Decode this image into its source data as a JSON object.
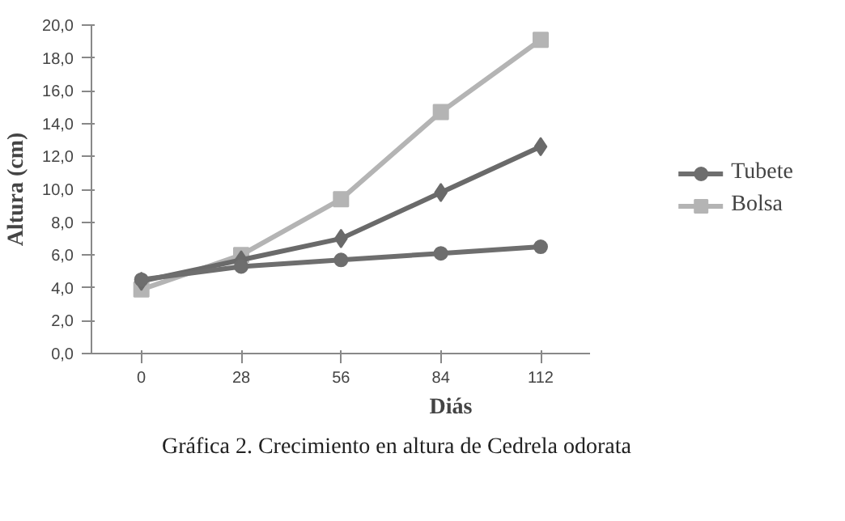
{
  "chart_data": {
    "type": "line",
    "xlabel": "Diás",
    "ylabel": "Altura (cm)",
    "annotations": [
      "Gráfica 2. Crecimiento en altura de Cedrela odorata"
    ],
    "categories": [
      "0",
      "28",
      "56",
      "84",
      "112"
    ],
    "ylim": [
      0,
      20
    ],
    "yticks": [
      {
        "value": 0,
        "label": "0,0"
      },
      {
        "value": 2,
        "label": "2,0"
      },
      {
        "value": 4,
        "label": "4,0"
      },
      {
        "value": 6,
        "label": "6,0"
      },
      {
        "value": 8,
        "label": "8,0"
      },
      {
        "value": 10,
        "label": "10,0"
      },
      {
        "value": 12,
        "label": "12,0"
      },
      {
        "value": 14,
        "label": "14,0"
      },
      {
        "value": 16,
        "label": "16,0"
      },
      {
        "value": 18,
        "label": "18,0"
      },
      {
        "value": 20,
        "label": "20,0"
      }
    ],
    "grid": false,
    "legend": "right",
    "line_style": "solid",
    "series": [
      {
        "name": "Tubete",
        "color": "#6e6e6e",
        "marker": "circle",
        "values": [
          4.5,
          5.3,
          5.7,
          6.1,
          6.5
        ]
      },
      {
        "color": "#6a6a6a",
        "marker": "diamond",
        "values": [
          4.4,
          5.7,
          7.0,
          9.8,
          12.6
        ]
      },
      {
        "name": "Bolsa",
        "color": "#b4b4b4",
        "marker": "square",
        "values": [
          3.9,
          6.0,
          9.4,
          14.7,
          19.1
        ]
      }
    ]
  }
}
